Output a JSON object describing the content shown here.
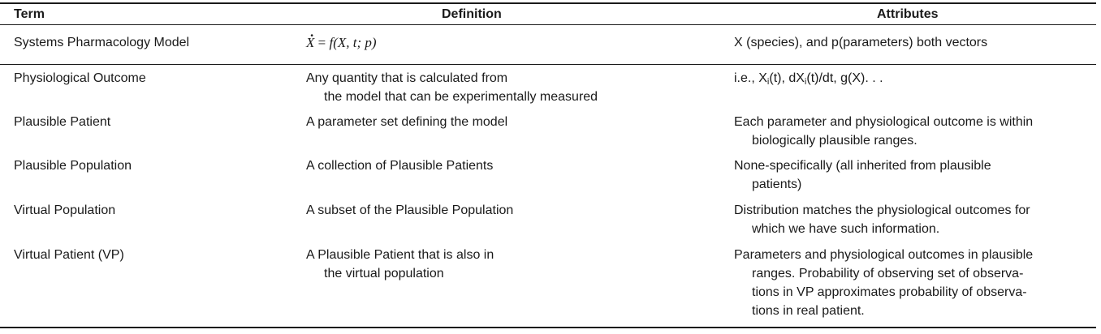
{
  "header": {
    "term": "Term",
    "definition": "Definition",
    "attributes": "Attributes"
  },
  "rows": [
    {
      "term": "Systems Pharmacology Model",
      "definition_formula": {
        "lhs": "X",
        "eq": " = ",
        "func": "f",
        "args": "(X, t; p)"
      },
      "attributes": [
        "X (species), and p(parameters) both vectors"
      ]
    },
    {
      "term": "Physiological Outcome",
      "definition": [
        "Any quantity that is calculated from",
        "the model that can be experimentally measured"
      ],
      "attributes_parts": {
        "a": "i.e., X",
        "sub1": "i",
        "b": "(t), dX",
        "sub2": "i",
        "c": "(t)/dt, g(X). . ."
      }
    },
    {
      "term": "Plausible Patient",
      "definition": [
        "A parameter set defining the model"
      ],
      "attributes": [
        "Each parameter and physiological outcome is within",
        "biologically plausible ranges."
      ]
    },
    {
      "term": "Plausible Population",
      "definition": [
        "A collection of Plausible Patients"
      ],
      "attributes": [
        "None-specifically (all inherited from plausible",
        "patients)"
      ]
    },
    {
      "term": "Virtual Population",
      "definition": [
        "A subset of the Plausible Population"
      ],
      "attributes": [
        "Distribution matches the physiological outcomes for",
        "which we have such information."
      ]
    },
    {
      "term": "Virtual Patient (VP)",
      "definition": [
        "A Plausible Patient that is also in",
        "the virtual population"
      ],
      "attributes": [
        "Parameters and physiological outcomes in plausible",
        "ranges. Probability of observing set of observa-",
        "tions in VP approximates probability of observa-",
        "tions in real patient."
      ]
    }
  ]
}
